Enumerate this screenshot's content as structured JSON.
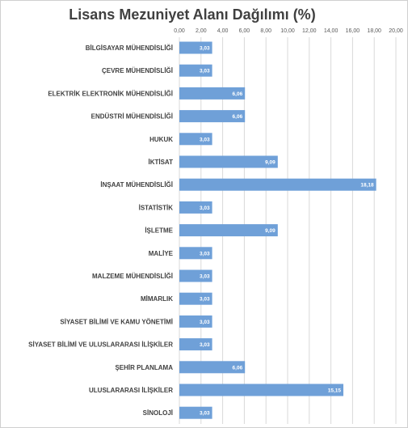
{
  "chart_data": {
    "type": "bar",
    "orientation": "horizontal",
    "title": "Lisans Mezuniyet Alanı Dağılımı (%)",
    "xlabel": "",
    "ylabel": "",
    "xlim": [
      0,
      20
    ],
    "tick_step": 2,
    "tick_labels": [
      "0,00",
      "2,00",
      "4,00",
      "6,00",
      "8,00",
      "10,00",
      "12,00",
      "14,00",
      "16,00",
      "18,00",
      "20,00"
    ],
    "grid": true,
    "bar_color": "#6fa0d8",
    "data_label_color": "#ffffff",
    "categories": [
      "BİLGİSAYAR MÜHENDİSLİĞİ",
      "ÇEVRE MÜHENDİSLİĞİ",
      "ELEKTRİK ELEKTRONİK MÜHENDİSLİĞİ",
      "ENDÜSTRİ MÜHENDİSLİĞİ",
      "HUKUK",
      "İKTİSAT",
      "İNŞAAT MÜHENDİSLİĞİ",
      "İSTATİSTİK",
      "İŞLETME",
      "MALİYE",
      "MALZEME MÜHENDİSLİĞİ",
      "MİMARLIK",
      "SİYASET BİLİMİ VE KAMU YÖNETİMİ",
      "SİYASET BİLİMİ VE ULUSLARARASI İLİŞKİLER",
      "ŞEHİR PLANLAMA",
      "ULUSLARARASI İLİŞKİLER",
      "SİNOLOJİ"
    ],
    "values": [
      3.03,
      3.03,
      6.06,
      6.06,
      3.03,
      9.09,
      18.18,
      3.03,
      9.09,
      3.03,
      3.03,
      3.03,
      3.03,
      3.03,
      6.06,
      15.15,
      3.03
    ],
    "value_labels": [
      "3,03",
      "3,03",
      "6,06",
      "6,06",
      "3,03",
      "9,09",
      "18,18",
      "3,03",
      "9,09",
      "3,03",
      "3,03",
      "3,03",
      "3,03",
      "3,03",
      "6,06",
      "15,15",
      "3,03"
    ]
  }
}
